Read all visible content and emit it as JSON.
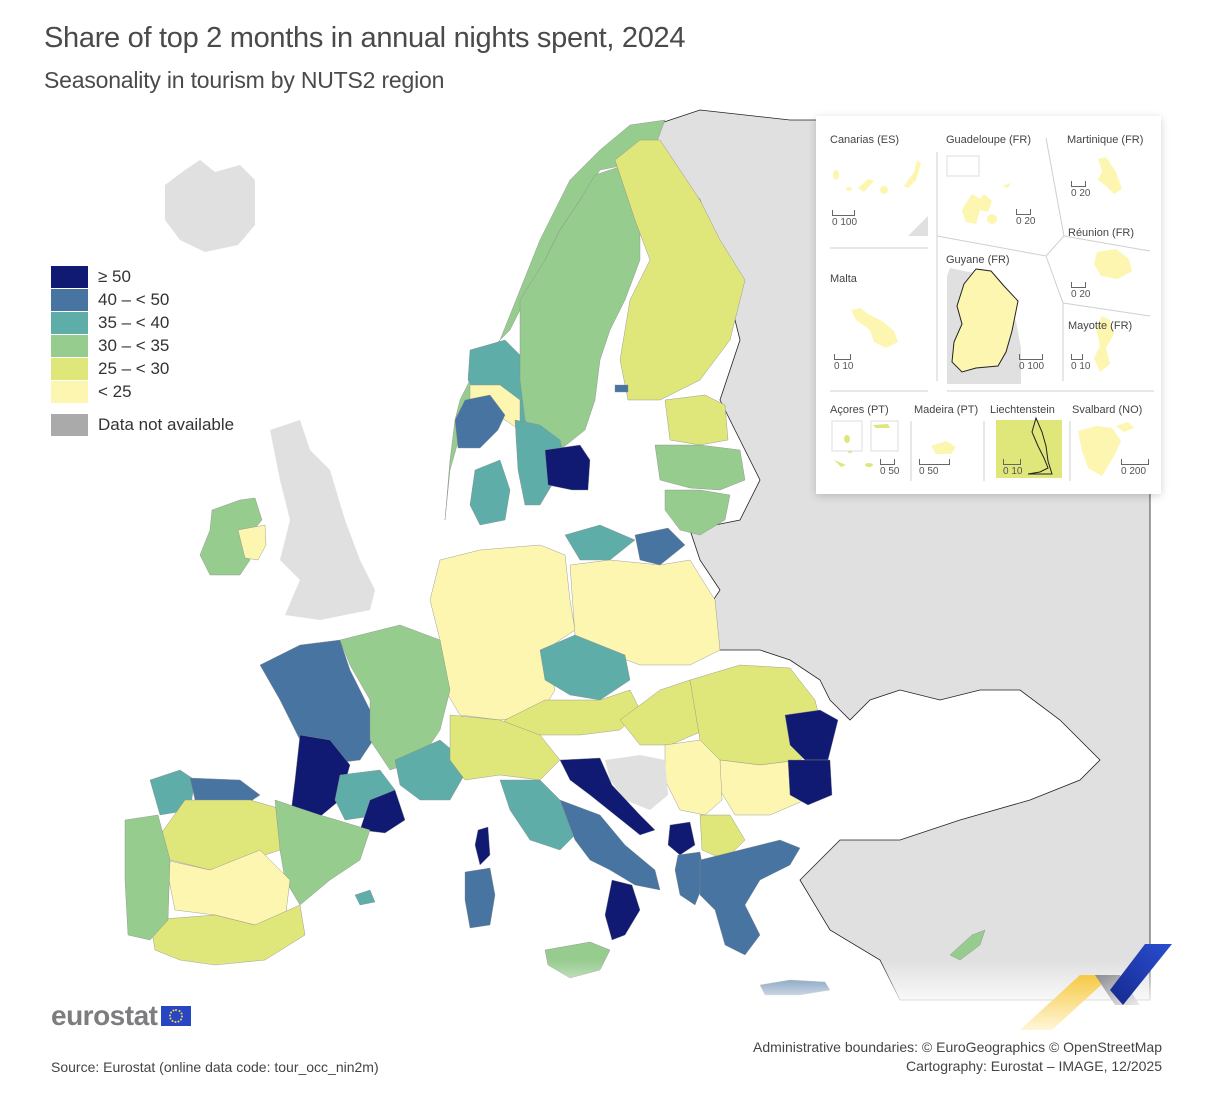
{
  "header": {
    "title": "Share of top 2 months in annual nights spent, 2024",
    "subtitle": "Seasonality in tourism by NUTS2 region"
  },
  "legend": {
    "classes": [
      {
        "label": "≥ 50",
        "color": "#101a72"
      },
      {
        "label": "40 – < 50",
        "color": "#4874a2"
      },
      {
        "label": "35 – < 40",
        "color": "#5fada8"
      },
      {
        "label": "30 – < 35",
        "color": "#97cc8f"
      },
      {
        "label": "25 – < 30",
        "color": "#dfe67a"
      },
      {
        "label": "< 25",
        "color": "#fdf6b0"
      }
    ],
    "not_available": {
      "label": "Data not available",
      "color": "#aaaaaa"
    }
  },
  "colors": {
    "non_eu": "#e0e0e0",
    "sea": "#ffffff",
    "border": "#222222"
  },
  "insets": [
    {
      "label": "Canarias (ES)",
      "scale": "0   100",
      "class": "< 25"
    },
    {
      "label": "Guadeloupe (FR)",
      "scale": "0  20",
      "class": "< 25"
    },
    {
      "label": "Martinique (FR)",
      "scale": "0  20",
      "class": "< 25"
    },
    {
      "label": "Réunion (FR)",
      "scale": "0  20",
      "class": "< 25"
    },
    {
      "label": "Malta",
      "scale": "0  10",
      "class": "< 25"
    },
    {
      "label": "Guyane (FR)",
      "scale": "0    100",
      "class": "< 25"
    },
    {
      "label": "Mayotte (FR)",
      "scale": "0 10",
      "class": "< 25"
    },
    {
      "label": "Açores (PT)",
      "scale": "0  50",
      "class": "25 – < 30"
    },
    {
      "label": "Madeira (PT)",
      "scale": "0     50",
      "class": "< 25"
    },
    {
      "label": "Liechtenstein",
      "scale": "0  10",
      "class": "25 – < 30"
    },
    {
      "label": "Svalbard (NO)",
      "scale": "0    200",
      "class": "< 25"
    }
  ],
  "regions": [
    {
      "name": "Iceland",
      "class": "na"
    },
    {
      "name": "Ireland North-West",
      "class": "30 – < 35"
    },
    {
      "name": "Ireland East",
      "class": "< 25"
    },
    {
      "name": "United Kingdom",
      "class": "na"
    },
    {
      "name": "Norway West",
      "class": "30 – < 35"
    },
    {
      "name": "Norway Innlandet",
      "class": "35 – < 40"
    },
    {
      "name": "Norway Agder",
      "class": "40 – < 50"
    },
    {
      "name": "Norway Oslo",
      "class": "< 25"
    },
    {
      "name": "Sweden North",
      "class": "30 – < 35"
    },
    {
      "name": "Sweden Småland",
      "class": "≥ 50"
    },
    {
      "name": "Sweden West",
      "class": "35 – < 40"
    },
    {
      "name": "Finland",
      "class": "25 – < 30"
    },
    {
      "name": "Åland",
      "class": "40 – < 50"
    },
    {
      "name": "Estonia",
      "class": "25 – < 30"
    },
    {
      "name": "Latvia",
      "class": "30 – < 35"
    },
    {
      "name": "Lithuania",
      "class": "30 – < 35"
    },
    {
      "name": "Denmark",
      "class": "35 – < 40"
    },
    {
      "name": "Germany",
      "class": "< 25"
    },
    {
      "name": "Poland Pomorskie",
      "class": "35 – < 40"
    },
    {
      "name": "Poland Warmia",
      "class": "40 – < 50"
    },
    {
      "name": "Poland Central",
      "class": "< 25"
    },
    {
      "name": "Czechia",
      "class": "35 – < 40"
    },
    {
      "name": "France North-West",
      "class": "40 – < 50"
    },
    {
      "name": "France Centre",
      "class": "30 – < 35"
    },
    {
      "name": "France Aquitaine",
      "class": "≥ 50"
    },
    {
      "name": "France Languedoc",
      "class": "≥ 50"
    },
    {
      "name": "France Midi",
      "class": "35 – < 40"
    },
    {
      "name": "France PACA",
      "class": "35 – < 40"
    },
    {
      "name": "Corsica",
      "class": "≥ 50"
    },
    {
      "name": "Spain North",
      "class": "25 – < 30"
    },
    {
      "name": "Spain Centre",
      "class": "< 25"
    },
    {
      "name": "Spain East",
      "class": "30 – < 35"
    },
    {
      "name": "Spain South",
      "class": "25 – < 30"
    },
    {
      "name": "Spain Galicia",
      "class": "35 – < 40"
    },
    {
      "name": "Spain Cantabria",
      "class": "40 – < 50"
    },
    {
      "name": "Baleares",
      "class": "35 – < 40"
    },
    {
      "name": "Portugal",
      "class": "30 – < 35"
    },
    {
      "name": "Italy North",
      "class": "25 – < 30"
    },
    {
      "name": "Italy Centre",
      "class": "35 – < 40"
    },
    {
      "name": "Italy South",
      "class": "40 – < 50"
    },
    {
      "name": "Calabria",
      "class": "≥ 50"
    },
    {
      "name": "Sicily",
      "class": "30 – < 35"
    },
    {
      "name": "Sardinia",
      "class": "40 – < 50"
    },
    {
      "name": "Austria",
      "class": "25 – < 30"
    },
    {
      "name": "Hungary",
      "class": "25 – < 30"
    },
    {
      "name": "Croatia Adriatic",
      "class": "≥ 50"
    },
    {
      "name": "Romania",
      "class": "25 – < 30"
    },
    {
      "name": "Romania Constanța",
      "class": "≥ 50"
    },
    {
      "name": "Bulgaria",
      "class": "< 25"
    },
    {
      "name": "Bulgaria Coast",
      "class": "≥ 50"
    },
    {
      "name": "Serbia",
      "class": "< 25"
    },
    {
      "name": "Montenegro",
      "class": "≥ 50"
    },
    {
      "name": "North Macedonia",
      "class": "25 – < 30"
    },
    {
      "name": "Albania",
      "class": "40 – < 50"
    },
    {
      "name": "Greece",
      "class": "40 – < 50"
    },
    {
      "name": "Crete",
      "class": "40 – < 50"
    },
    {
      "name": "Cyprus",
      "class": "30 – < 35"
    },
    {
      "name": "Bosnia and Herzegovina",
      "class": "na"
    },
    {
      "name": "Ukraine / Belarus / Russia / Turkey",
      "class": "na"
    }
  ],
  "footer": {
    "logo": "eurostat",
    "source": "Source: Eurostat (online data code: tour_occ_nin2m)",
    "credits_line1": "Administrative boundaries: © EuroGeographics © OpenStreetMap",
    "credits_line2": "Cartography: Eurostat – IMAGE, 12/2025"
  }
}
